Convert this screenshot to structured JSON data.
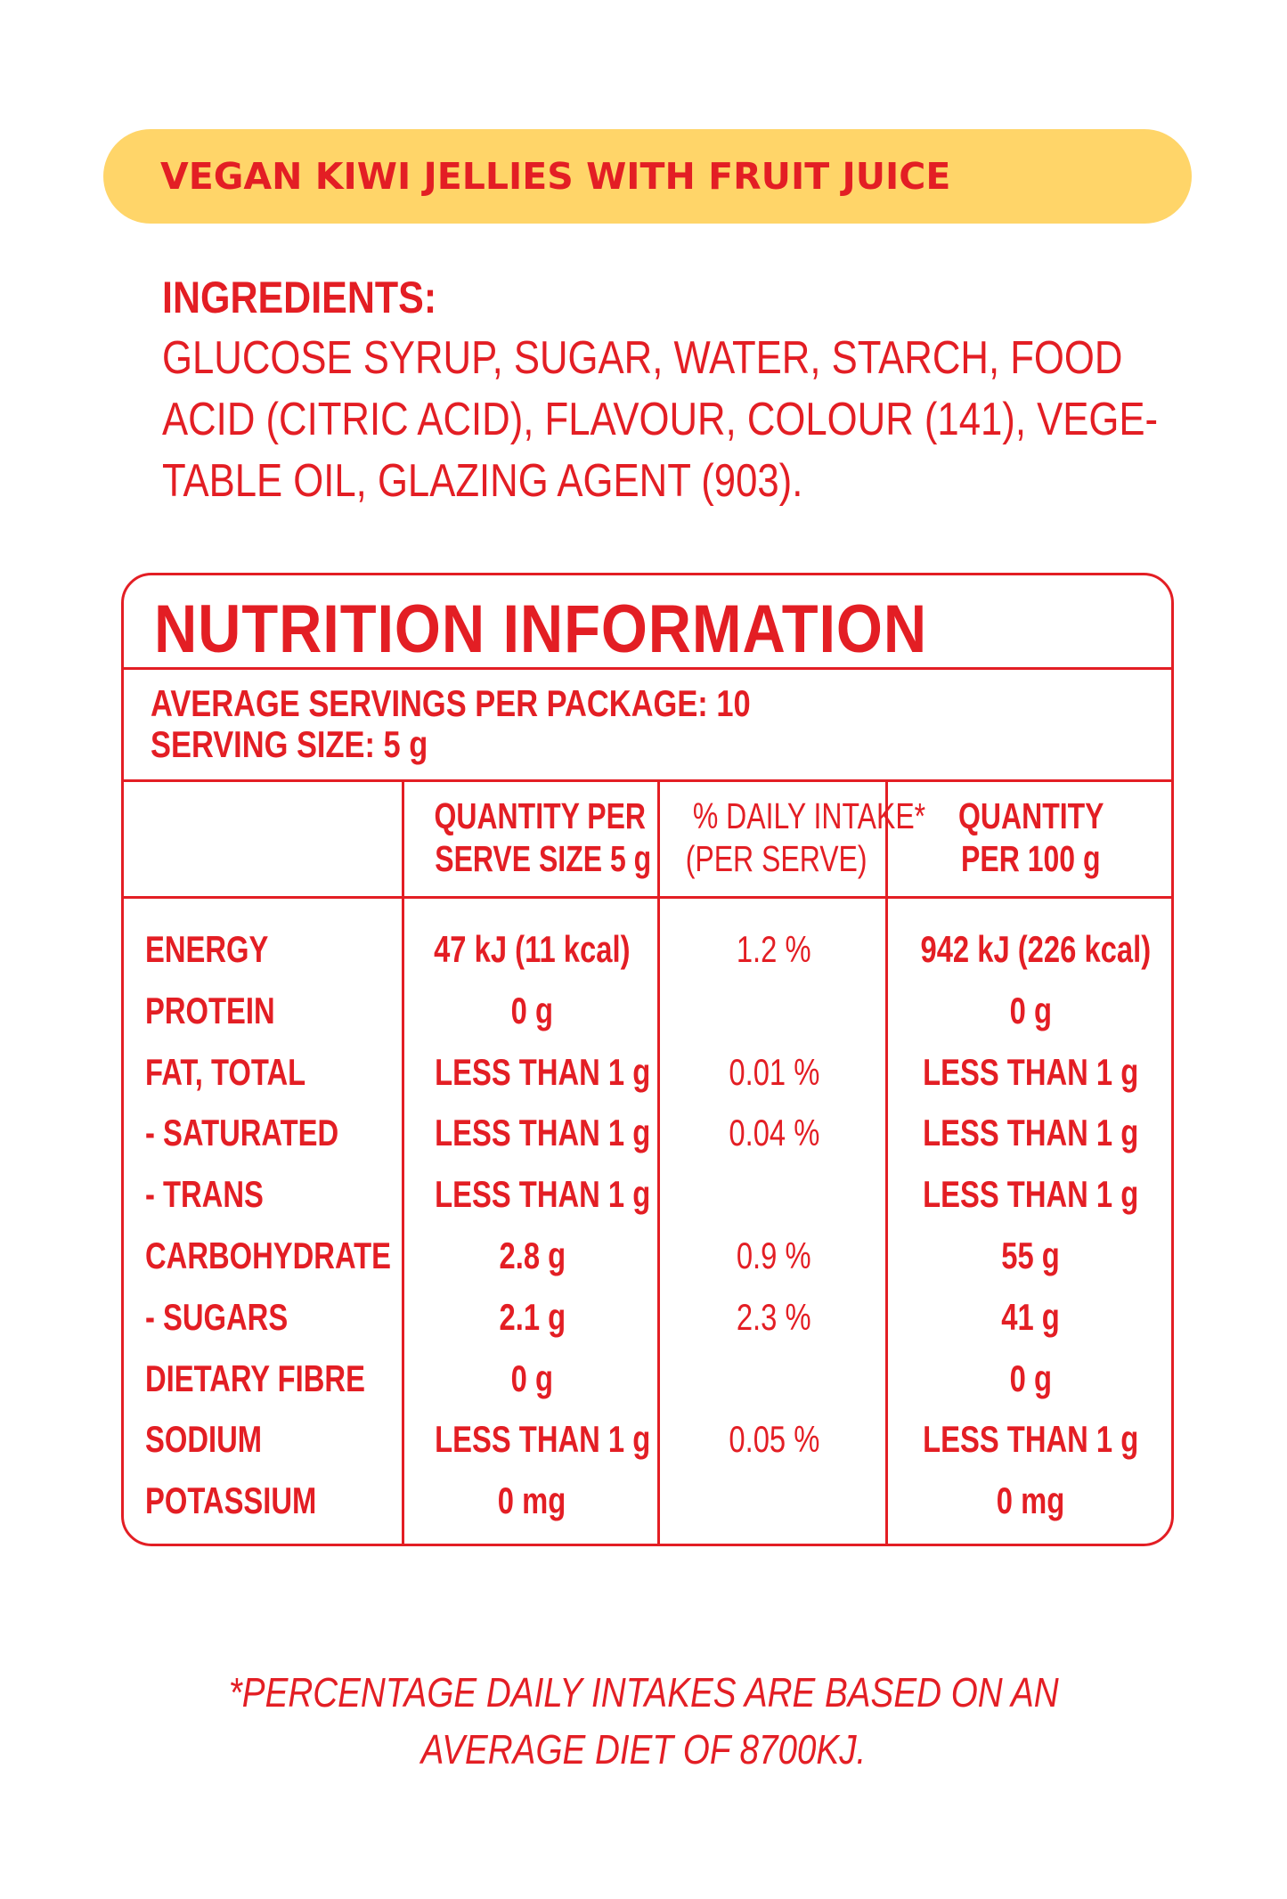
{
  "product_title": "VEGAN KIWI JELLIES WITH FRUIT JUICE",
  "ingredients": {
    "heading": "INGREDIENTS:",
    "lines": [
      "GLUCOSE SYRUP, SUGAR, WATER, STARCH, FOOD",
      "ACID (CITRIC ACID), FLAVOUR, COLOUR (141), VEGE-",
      "TABLE OIL, GLAZING AGENT (903)."
    ]
  },
  "nutrition": {
    "title": "NUTRITION INFORMATION",
    "servings_per_package": "AVERAGE SERVINGS PER PACKAGE: 10",
    "serving_size": "SERVING SIZE: 5 g",
    "columns": {
      "per_serve": [
        "QUANTITY PER",
        "SERVE SIZE  5 g"
      ],
      "daily_intake": [
        "% DAILY INTAKE*",
        "(PER SERVE)"
      ],
      "per_100g": [
        "QUANTITY",
        "PER 100 g"
      ]
    },
    "rows": [
      {
        "label": "ENERGY",
        "per_serve": "47 kJ (11 kcal)",
        "daily": "1.2 %",
        "per_100g": "942 kJ (226 kcal)"
      },
      {
        "label": "PROTEIN",
        "per_serve": "0 g",
        "daily": "",
        "per_100g": "0 g"
      },
      {
        "label": "FAT, TOTAL",
        "per_serve": "LESS THAN 1 g",
        "daily": "0.01 %",
        "per_100g": "LESS THAN 1 g"
      },
      {
        "label": "- SATURATED",
        "per_serve": "LESS THAN 1 g",
        "daily": "0.04 %",
        "per_100g": "LESS THAN 1 g"
      },
      {
        "label": "- TRANS",
        "per_serve": "LESS THAN 1 g",
        "daily": "",
        "per_100g": "LESS THAN 1 g"
      },
      {
        "label": "CARBOHYDRATE",
        "per_serve": "2.8 g",
        "daily": "0.9 %",
        "per_100g": "55 g"
      },
      {
        "label": "- SUGARS",
        "per_serve": "2.1 g",
        "daily": "2.3 %",
        "per_100g": "41 g"
      },
      {
        "label": "DIETARY FIBRE",
        "per_serve": "0 g",
        "daily": "",
        "per_100g": "0 g"
      },
      {
        "label": "SODIUM",
        "per_serve": "LESS THAN 1 g",
        "daily": "0.05 %",
        "per_100g": "LESS THAN 1 g"
      },
      {
        "label": "POTASSIUM",
        "per_serve": "0 mg",
        "daily": "",
        "per_100g": "0 mg"
      }
    ]
  },
  "footnote": [
    "*PERCENTAGE DAILY INTAKES ARE BASED ON AN",
    "AVERAGE DIET OF 8700KJ."
  ],
  "colors": {
    "text": "#e31e24",
    "banner": "#ffd569",
    "background": "#ffffff"
  }
}
